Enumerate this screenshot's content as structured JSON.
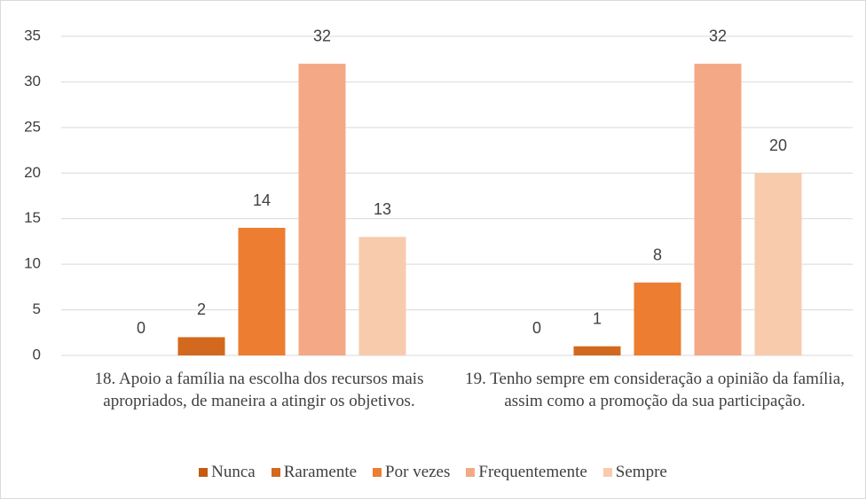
{
  "chart_data": {
    "type": "bar",
    "categories": [
      "18. Apoio a família na escolha dos recursos mais apropriados, de maneira a atingir os objetivos.",
      "19. Tenho sempre em consideração a opinião da família, assim como a promoção da sua participação."
    ],
    "series": [
      {
        "name": "Nunca",
        "color": "#c55a11",
        "values": [
          0,
          0
        ]
      },
      {
        "name": "Raramente",
        "color": "#d2691e",
        "values": [
          2,
          1
        ]
      },
      {
        "name": "Por vezes",
        "color": "#ed7d31",
        "values": [
          14,
          8
        ]
      },
      {
        "name": "Frequentemente",
        "color": "#f4a886",
        "values": [
          32,
          32
        ]
      },
      {
        "name": "Sempre",
        "color": "#f8cbad",
        "values": [
          13,
          20
        ]
      }
    ],
    "ylim": [
      0,
      35
    ],
    "yticks": [
      0,
      5,
      10,
      15,
      20,
      25,
      30,
      35
    ],
    "grid": true,
    "legend": "bottom"
  }
}
